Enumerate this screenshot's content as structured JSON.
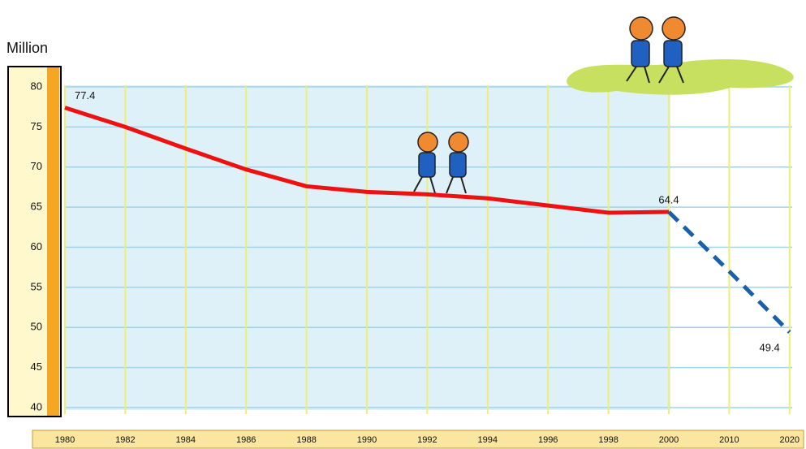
{
  "chart_data": {
    "type": "line",
    "y_label": "Million",
    "categories": [
      "1980",
      "1982",
      "1984",
      "1986",
      "1988",
      "1990",
      "1992",
      "1994",
      "1996",
      "1998",
      "2000",
      "2010",
      "2020"
    ],
    "series": [
      {
        "color": "#ee1111",
        "style": "solid",
        "values": [
          77.4,
          75.0,
          72.3,
          69.7,
          67.6,
          66.9,
          66.6,
          66.1,
          65.2,
          64.3,
          64.4,
          null,
          null
        ],
        "value_labels": [
          "77.4",
          null,
          null,
          null,
          null,
          null,
          null,
          null,
          null,
          null,
          "64.4",
          null,
          null
        ]
      },
      {
        "color": "#1a5faa",
        "style": "dashed",
        "values": [
          null,
          null,
          null,
          null,
          null,
          null,
          null,
          null,
          null,
          null,
          64.4,
          57.0,
          49.4
        ],
        "value_labels": [
          null,
          null,
          null,
          null,
          null,
          null,
          null,
          null,
          null,
          null,
          null,
          null,
          "49.4"
        ]
      }
    ],
    "ylim": [
      40,
      80
    ],
    "yticks": [
      40,
      45,
      50,
      55,
      60,
      65,
      70,
      75,
      80
    ],
    "grid": true
  }
}
